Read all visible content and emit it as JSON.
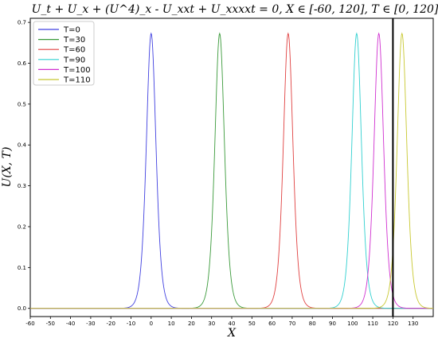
{
  "chart_data": {
    "type": "line",
    "title": "U_t + U_x + (U^4)_x - U_xxt + U_xxxxt = 0,   X ∈ [-60, 120],   T ∈ [0, 120]",
    "xlabel": "X",
    "ylabel": "U(X, T)",
    "xlim": [
      -60,
      140
    ],
    "ylim": [
      -0.02,
      0.71
    ],
    "x_ticks": [
      "-60",
      "-50",
      "-40",
      "-30",
      "-20",
      "-10",
      "0",
      "10",
      "20",
      "30",
      "40",
      "50",
      "60",
      "70",
      "80",
      "90",
      "100",
      "110",
      "120",
      "130"
    ],
    "y_ticks": [
      "0.0",
      "0.1",
      "0.2",
      "0.3",
      "0.4",
      "0.5",
      "0.6",
      "0.7"
    ],
    "grid": false,
    "legend_position": "top-left",
    "vertical_marker": {
      "x": 120,
      "color": "#000000"
    },
    "series": [
      {
        "name": "T=0",
        "color": "#4040e0",
        "center": 0,
        "amplitude": 0.673,
        "width": 3.2
      },
      {
        "name": "T=30",
        "color": "#3a9a3a",
        "center": 34,
        "amplitude": 0.673,
        "width": 3.2
      },
      {
        "name": "T=60",
        "color": "#e04040",
        "center": 68,
        "amplitude": 0.673,
        "width": 3.2
      },
      {
        "name": "T=90",
        "color": "#30d0d0",
        "center": 102,
        "amplitude": 0.673,
        "width": 3.2
      },
      {
        "name": "T=100",
        "color": "#d030d0",
        "center": 113,
        "amplitude": 0.673,
        "width": 3.2
      },
      {
        "name": "T=110",
        "color": "#c8c830",
        "center": 124.5,
        "amplitude": 0.673,
        "width": 3.2
      }
    ]
  }
}
